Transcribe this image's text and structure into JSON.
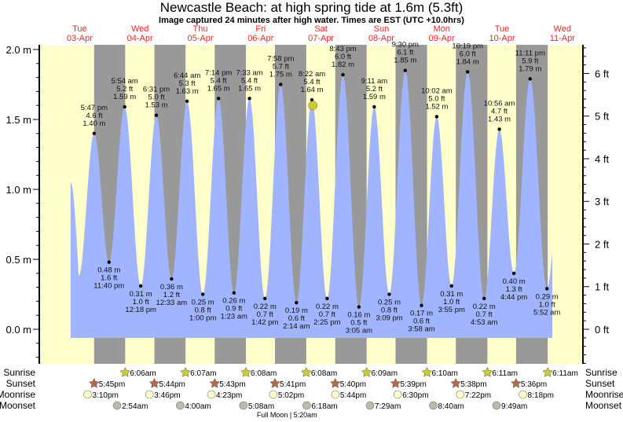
{
  "chart_data": {
    "type": "area",
    "title": "Newcastle Beach: at high  spring tide at 1.6m (5.3ft)",
    "subtitle": "Image captured 24 minutes after high water. Times are EST (UTC +10.0hrs)",
    "y_left": {
      "unit": "m",
      "range": [
        -0.25,
        2.05
      ],
      "ticks": [
        "2.0 m",
        "1.5 m",
        "1.0 m",
        "0.5 m",
        "0.0 m"
      ],
      "tick_values": [
        2.0,
        1.5,
        1.0,
        0.5,
        0.0
      ]
    },
    "y_right": {
      "unit": "ft",
      "ticks": [
        "6 ft",
        "5 ft",
        "4 ft",
        "3 ft",
        "2 ft",
        "1 ft",
        "0 ft"
      ],
      "tick_values": [
        6,
        5,
        4,
        3,
        2,
        1,
        0
      ]
    },
    "days": [
      {
        "dow": "Tue",
        "date": "03-Apr"
      },
      {
        "dow": "Wed",
        "date": "04-Apr"
      },
      {
        "dow": "Thu",
        "date": "05-Apr"
      },
      {
        "dow": "Fri",
        "date": "06-Apr"
      },
      {
        "dow": "Sat",
        "date": "07-Apr"
      },
      {
        "dow": "Sun",
        "date": "08-Apr"
      },
      {
        "dow": "Mon",
        "date": "09-Apr"
      },
      {
        "dow": "Tue",
        "date": "10-Apr"
      },
      {
        "dow": "Wed",
        "date": "11-Apr"
      }
    ],
    "curve_start": {
      "hour": 8.4,
      "m": 1.05
    },
    "curve_unlabeled_low": {
      "hour": 11.6,
      "m": 0.38
    },
    "curve_end": {
      "hour": 200.0,
      "m": 0.55
    },
    "extremes": [
      {
        "type": "high",
        "hour": 17.78,
        "time": "5:47 pm",
        "ft": "4.6 ft",
        "m": 1.4,
        "m_label": "1.40 m"
      },
      {
        "type": "low",
        "hour": 23.67,
        "time": "11:40 pm",
        "ft": "1.6 ft",
        "m": 0.48,
        "m_label": "0.48 m"
      },
      {
        "type": "high",
        "hour": 29.9,
        "time": "5:54 am",
        "ft": "5.2 ft",
        "m": 1.59,
        "m_label": "1.59 m"
      },
      {
        "type": "low",
        "hour": 36.3,
        "time": "12:18 pm",
        "ft": "1.0 ft",
        "m": 0.31,
        "m_label": "0.31 m"
      },
      {
        "type": "high",
        "hour": 42.52,
        "time": "6:31 pm",
        "ft": "5.0 ft",
        "m": 1.53,
        "m_label": "1.53 m"
      },
      {
        "type": "low",
        "hour": 48.55,
        "time": "12:33 am",
        "ft": "1.2 ft",
        "m": 0.36,
        "m_label": "0.36 m"
      },
      {
        "type": "high",
        "hour": 54.73,
        "time": "6:44 am",
        "ft": "5.3 ft",
        "m": 1.63,
        "m_label": "1.63 m"
      },
      {
        "type": "low",
        "hour": 61.0,
        "time": "1:00 pm",
        "ft": "0.8 ft",
        "m": 0.25,
        "m_label": "0.25 m"
      },
      {
        "type": "high",
        "hour": 67.23,
        "time": "7:14 pm",
        "ft": "5.4 ft",
        "m": 1.65,
        "m_label": "1.65 m"
      },
      {
        "type": "low",
        "hour": 73.38,
        "time": "1:23 am",
        "ft": "0.9 ft",
        "m": 0.26,
        "m_label": "0.26 m"
      },
      {
        "type": "high",
        "hour": 79.55,
        "time": "7:33 am",
        "ft": "5.4 ft",
        "m": 1.65,
        "m_label": "1.65 m"
      },
      {
        "type": "low",
        "hour": 85.7,
        "time": "1:42 pm",
        "ft": "0.7 ft",
        "m": 0.22,
        "m_label": "0.22 m"
      },
      {
        "type": "high",
        "hour": 91.97,
        "time": "7:58 pm",
        "ft": "5.7 ft",
        "m": 1.75,
        "m_label": "1.75 m"
      },
      {
        "type": "low",
        "hour": 98.23,
        "time": "2:14 am",
        "ft": "0.6 ft",
        "m": 0.19,
        "m_label": "0.19 m"
      },
      {
        "type": "high",
        "hour": 104.37,
        "time": "8:22 am",
        "ft": "5.4 ft",
        "m": 1.64,
        "m_label": "1.64 m"
      },
      {
        "type": "low",
        "hour": 110.42,
        "time": "2:25 pm",
        "ft": "0.7 ft",
        "m": 0.22,
        "m_label": "0.22 m"
      },
      {
        "type": "high",
        "hour": 116.72,
        "time": "8:43 pm",
        "ft": "6.0 ft",
        "m": 1.82,
        "m_label": "1.82 m"
      },
      {
        "type": "low",
        "hour": 123.08,
        "time": "3:05 am",
        "ft": "0.5 ft",
        "m": 0.16,
        "m_label": "0.16 m"
      },
      {
        "type": "high",
        "hour": 129.18,
        "time": "9:11 am",
        "ft": "5.2 ft",
        "m": 1.59,
        "m_label": "1.59 m"
      },
      {
        "type": "low",
        "hour": 135.15,
        "time": "3:09 pm",
        "ft": "0.8 ft",
        "m": 0.25,
        "m_label": "0.25 m"
      },
      {
        "type": "high",
        "hour": 141.5,
        "time": "9:30 pm",
        "ft": "6.1 ft",
        "m": 1.85,
        "m_label": "1.85 m"
      },
      {
        "type": "low",
        "hour": 147.97,
        "time": "3:58 am",
        "ft": "0.6 ft",
        "m": 0.17,
        "m_label": "0.17 m"
      },
      {
        "type": "high",
        "hour": 154.03,
        "time": "10:02 am",
        "ft": "5.0 ft",
        "m": 1.52,
        "m_label": "1.52 m"
      },
      {
        "type": "low",
        "hour": 159.92,
        "time": "3:55 pm",
        "ft": "1.0 ft",
        "m": 0.31,
        "m_label": "0.31 m"
      },
      {
        "type": "high",
        "hour": 166.32,
        "time": "10:19 pm",
        "ft": "6.0 ft",
        "m": 1.84,
        "m_label": "1.84 m"
      },
      {
        "type": "low",
        "hour": 172.88,
        "time": "4:53 am",
        "ft": "0.7 ft",
        "m": 0.22,
        "m_label": "0.22 m"
      },
      {
        "type": "high",
        "hour": 178.93,
        "time": "10:56 am",
        "ft": "4.7 ft",
        "m": 1.43,
        "m_label": "1.43 m"
      },
      {
        "type": "low",
        "hour": 184.73,
        "time": "4:44 pm",
        "ft": "1.3 ft",
        "m": 0.4,
        "m_label": "0.40 m"
      },
      {
        "type": "high",
        "hour": 191.18,
        "time": "11:11 pm",
        "ft": "5.9 ft",
        "m": 1.79,
        "m_label": "1.79 m"
      },
      {
        "type": "low",
        "hour": 197.87,
        "time": "5:52 am",
        "ft": "1.0 ft",
        "m": 0.29,
        "m_label": "0.29 m"
      }
    ],
    "current_marker": {
      "hour": 104.77,
      "m": 1.6
    },
    "rows": {
      "sunrise": {
        "label": "Sunrise",
        "events": [
          {
            "hour": 30.1,
            "time": "6:06am"
          },
          {
            "hour": 54.12,
            "time": "6:07am"
          },
          {
            "hour": 78.13,
            "time": "6:08am"
          },
          {
            "hour": 102.13,
            "time": "6:08am"
          },
          {
            "hour": 126.15,
            "time": "6:09am"
          },
          {
            "hour": 150.17,
            "time": "6:10am"
          },
          {
            "hour": 174.18,
            "time": "6:11am"
          },
          {
            "hour": 198.18,
            "time": "6:11am"
          }
        ]
      },
      "sunset": {
        "label": "Sunset",
        "events": [
          {
            "hour": 17.75,
            "time": "5:45pm"
          },
          {
            "hour": 41.73,
            "time": "5:44pm"
          },
          {
            "hour": 65.72,
            "time": "5:43pm"
          },
          {
            "hour": 89.68,
            "time": "5:41pm"
          },
          {
            "hour": 113.67,
            "time": "5:40pm"
          },
          {
            "hour": 137.65,
            "time": "5:39pm"
          },
          {
            "hour": 161.63,
            "time": "5:38pm"
          },
          {
            "hour": 185.6,
            "time": "5:36pm"
          }
        ]
      },
      "moonrise": {
        "label": "Moonrise",
        "events": [
          {
            "hour": 15.17,
            "time": "3:10pm"
          },
          {
            "hour": 39.77,
            "time": "3:46pm"
          },
          {
            "hour": 64.38,
            "time": "4:23pm"
          },
          {
            "hour": 89.03,
            "time": "5:02pm"
          },
          {
            "hour": 113.73,
            "time": "5:44pm"
          },
          {
            "hour": 138.5,
            "time": "6:30pm"
          },
          {
            "hour": 163.37,
            "time": "7:22pm"
          },
          {
            "hour": 188.3,
            "time": "8:18pm"
          }
        ]
      },
      "moonset": {
        "label": "Moonset",
        "events": [
          {
            "hour": 26.9,
            "time": "2:54am"
          },
          {
            "hour": 52.0,
            "time": "4:00am"
          },
          {
            "hour": 77.13,
            "time": "5:08am"
          },
          {
            "hour": 102.3,
            "time": "6:18am"
          },
          {
            "hour": 127.48,
            "time": "7:29am"
          },
          {
            "hour": 152.67,
            "time": "8:40am"
          },
          {
            "hour": 177.82,
            "time": "9:49am"
          }
        ]
      }
    },
    "moon_phase": {
      "text": "Full Moon | 5:20am",
      "hour": 101.33
    },
    "colors": {
      "day": "#ffffcc",
      "night": "#999999",
      "water": "#a0b4ff",
      "day_label": "#ff2020",
      "sun": "#cccc33",
      "sunset": "#b86a45",
      "moonrise": "#ffffcc",
      "moonset": "#bbbbaa",
      "marker": "#cccc33"
    }
  }
}
